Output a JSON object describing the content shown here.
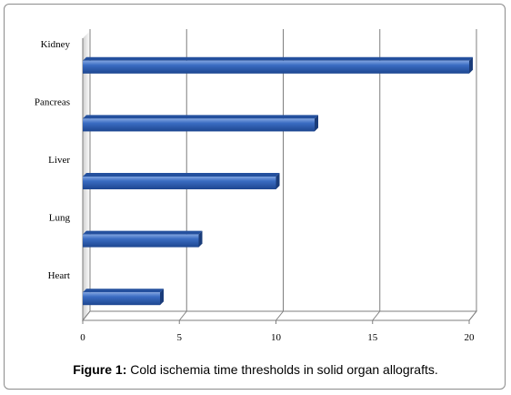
{
  "caption": {
    "label": "Figure 1:",
    "text": " Cold ischemia time thresholds in solid organ allografts."
  },
  "chart_data": {
    "type": "bar",
    "orientation": "horizontal",
    "style": "3d",
    "categories": [
      "Kidney",
      "Pancreas",
      "Liver",
      "Lung",
      "Heart"
    ],
    "values": [
      20,
      12,
      10,
      6,
      4
    ],
    "title": "",
    "xlabel": "",
    "ylabel": "",
    "xlim": [
      0,
      20
    ],
    "xticks": [
      "0",
      "5",
      "10",
      "15",
      "20"
    ],
    "grid": true,
    "legend": "none",
    "bar_color": "#2f63b8"
  }
}
